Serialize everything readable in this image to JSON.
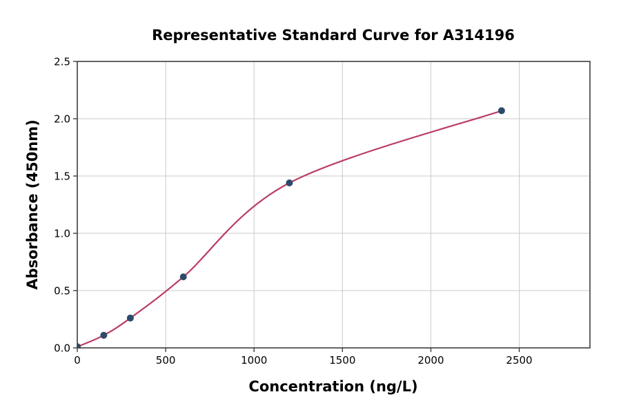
{
  "chart_data": {
    "type": "scatter",
    "title": "Representative Standard Curve for A314196",
    "xlabel": "Concentration (ng/L)",
    "ylabel": "Absorbance (450nm)",
    "xlim": [
      0,
      2900
    ],
    "ylim": [
      0.0,
      2.5
    ],
    "x_ticks": [
      0,
      500,
      1000,
      1500,
      2000,
      2500
    ],
    "x_tick_labels": [
      "0",
      "500",
      "1000",
      "1500",
      "2000",
      "2500"
    ],
    "y_ticks": [
      0.0,
      0.5,
      1.0,
      1.5,
      2.0,
      2.5
    ],
    "y_tick_labels": [
      "0.0",
      "0.5",
      "1.0",
      "1.5",
      "2.0",
      "2.5"
    ],
    "grid": true,
    "legend": "none",
    "points": [
      {
        "x": 0,
        "y": 0.01
      },
      {
        "x": 150,
        "y": 0.11
      },
      {
        "x": 300,
        "y": 0.26
      },
      {
        "x": 600,
        "y": 0.62
      },
      {
        "x": 1200,
        "y": 1.44
      },
      {
        "x": 2400,
        "y": 2.07
      }
    ],
    "curve": {
      "description": "fitted sigmoid standard curve through the data points, drawn from x=0 to x=2400"
    },
    "colors": {
      "point": "#2d4a6a",
      "curve": "#bb3c66",
      "grid": "#c9c9c9",
      "spine": "#3d3d3d",
      "text": "#000000",
      "background": "#ffffff"
    }
  }
}
